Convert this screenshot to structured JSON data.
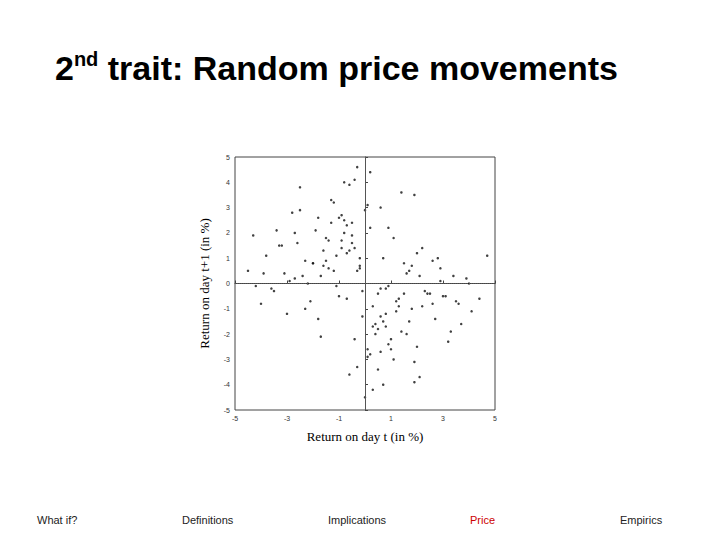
{
  "chart_data": {
    "type": "scatter",
    "title": "2nd trait: Random price movements",
    "x_label": "Return on day t (in %)",
    "y_label": "Return on day t+1 (in %)",
    "xlim": [
      -5,
      5
    ],
    "xticks": [
      -5,
      -3,
      -1,
      1,
      3,
      5
    ],
    "ylim": [
      -5,
      5
    ],
    "yticks": [
      -5,
      -4,
      -3,
      -2,
      -1,
      0,
      1,
      2,
      3,
      4,
      5
    ],
    "grid": false,
    "color": "#111111",
    "marker": "circle",
    "reference_lines": [
      {
        "axis": "x",
        "value": 0,
        "line_style": "solid"
      },
      {
        "axis": "y",
        "value": 0,
        "line_style": "dotted"
      }
    ],
    "x": [
      -0.3,
      0.8,
      -1.5,
      2.1,
      -0.7,
      0.2,
      1.4,
      -2.3,
      0.5,
      -1.1,
      3.2,
      -0.2,
      0.9,
      -1.8,
      1.7,
      -3.1,
      0.1,
      2.6,
      -0.9,
      0.6,
      -2.7,
      1.1,
      -0.5,
      0.3,
      -1.3,
      2.9,
      -0.1,
      1.9,
      -3.6,
      0.7,
      1.2,
      -0.8,
      4.1,
      -2.0,
      0.4,
      -1.6,
      2.3,
      -0.4,
      3.7,
      -2.9,
      0.0,
      -1.0,
      1.6,
      -0.6,
      2.0,
      -4.2,
      0.9,
      -1.4,
      1.3,
      -0.2,
      2.7,
      -2.5,
      0.6,
      -3.3,
      1.8,
      -0.9,
      3.4,
      -1.7,
      0.2,
      4.4,
      -0.5,
      1.0,
      -2.2,
      0.8,
      -1.2,
      2.4,
      -3.8,
      0.3,
      1.5,
      -0.7,
      -4.0,
      2.2,
      -0.3,
      1.7,
      -1.9,
      0.5,
      3.0,
      -2.6,
      0.1,
      -1.5,
      1.4,
      -0.1,
      2.8,
      -3.0,
      0.7,
      -0.8,
      3.9,
      -2.1,
      1.1,
      -0.4,
      -1.6,
      0.4,
      -2.8,
      2.5,
      -0.6,
      1.9,
      -4.5,
      0.6,
      -1.1,
      3.3,
      0.2,
      -2.4,
      1.3,
      -0.3,
      4.7,
      -1.8,
      0.9,
      -3.5,
      2.1,
      -0.9,
      -0.2,
      1.6,
      -1.4,
      3.6,
      -2.7,
      0.0,
      2.6,
      -0.5,
      1.2,
      -3.9,
      0.8,
      -1.3,
      2.0,
      -0.7,
      4.0,
      -2.3,
      0.5,
      1.8,
      -1.0,
      3.1,
      -3.2,
      0.3,
      -0.8,
      2.2,
      -1.7,
      1.0,
      -4.3,
      0.7,
      2.9,
      -0.6,
      1.5,
      -2.0,
      0.1,
      -3.4,
      1.9,
      -0.4,
      3.5,
      -1.2,
      0.6,
      -2.5
    ],
    "values": [
      0.5,
      -1.2,
      1.8,
      0.3,
      -0.6,
      2.2,
      -1.9,
      0.9,
      -0.4,
      1.1,
      -2.3,
      0.7,
      -0.1,
      2.6,
      -1.5,
      0.4,
      3.1,
      -0.8,
      1.4,
      -2.7,
      0.2,
      -3.0,
      1.6,
      -0.9,
      2.4,
      0.6,
      -1.3,
      3.5,
      -0.2,
      1.0,
      -0.7,
      2.0,
      -1.1,
      0.8,
      -2.0,
      1.3,
      -0.3,
      4.1,
      -1.6,
      0.1,
      2.9,
      -0.5,
      0.4,
      -3.6,
      1.2,
      -0.1,
      -2.4,
      1.7,
      -0.9,
      0.6,
      -1.4,
      3.8,
      -0.2,
      1.5,
      -1.0,
      2.7,
      0.3,
      -2.1,
      4.4,
      -0.6,
      1.9,
      -2.6,
      0.0,
      -1.7,
      3.2,
      -0.4,
      1.1,
      -4.2,
      0.8,
      2.3,
      -0.8,
      1.4,
      -3.3,
      0.5,
      2.1,
      -1.8,
      -0.5,
      1.6,
      -2.9,
      0.9,
      3.6,
      -0.3,
      1.0,
      -1.2,
      -4.0,
      2.5,
      0.2,
      -0.7,
      1.8,
      -2.2,
      0.7,
      -1.6,
      2.8,
      -0.4,
      1.3,
      -3.1,
      0.5,
      3.0,
      -0.1,
      -1.9,
      -2.8,
      0.3,
      -0.6,
      4.6,
      1.1,
      -1.4,
      2.2,
      -0.3,
      -3.7,
      1.7,
      1.0,
      -2.0,
      0.6,
      -0.8,
      2.0,
      -4.5,
      0.9,
      2.4,
      -1.1,
      0.4,
      -0.2,
      3.3,
      -2.5,
      1.2,
      0.0,
      -1.0,
      -3.4,
      0.7,
      2.6,
      -0.5,
      1.5,
      -1.7,
      4.0,
      -0.9,
      0.3,
      -2.2,
      1.9,
      -1.5,
      0.1,
      3.9,
      -0.4,
      0.8,
      -2.6,
      2.1,
      -3.9,
      1.4,
      -0.7,
      0.5,
      -1.3,
      2.9
    ]
  },
  "footer": {
    "items": [
      "What if?",
      "Definitions",
      "Implications",
      "Price",
      "Empirics"
    ],
    "active": "Price",
    "color": "#cc0000"
  }
}
